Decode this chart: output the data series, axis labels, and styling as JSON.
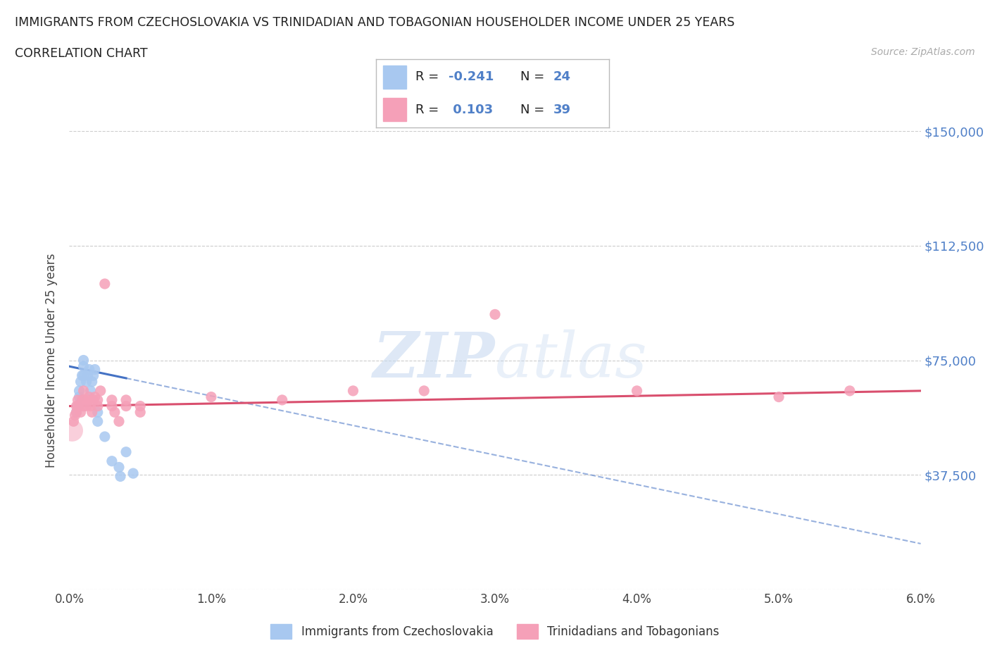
{
  "title_line1": "IMMIGRANTS FROM CZECHOSLOVAKIA VS TRINIDADIAN AND TOBAGONIAN HOUSEHOLDER INCOME UNDER 25 YEARS",
  "title_line2": "CORRELATION CHART",
  "source_text": "Source: ZipAtlas.com",
  "ylabel": "Householder Income Under 25 years",
  "xmin": 0.0,
  "xmax": 0.06,
  "ymin": 0,
  "ymax": 150000,
  "ytick_vals": [
    0,
    37500,
    75000,
    112500,
    150000
  ],
  "ytick_labels": [
    "",
    "$37,500",
    "$75,000",
    "$112,500",
    "$150,000"
  ],
  "xtick_vals": [
    0.0,
    0.01,
    0.02,
    0.03,
    0.04,
    0.05,
    0.06
  ],
  "xtick_labels": [
    "0.0%",
    "1.0%",
    "2.0%",
    "3.0%",
    "4.0%",
    "5.0%",
    "6.0%"
  ],
  "blue_R": -0.241,
  "blue_N": 24,
  "pink_R": 0.103,
  "pink_N": 39,
  "blue_dot_color": "#a8c8f0",
  "pink_dot_color": "#f5a0b8",
  "blue_line_color": "#4472c4",
  "pink_line_color": "#d94f6e",
  "axis_color": "#5080c8",
  "grid_color": "#cccccc",
  "watermark_color": "#c8daf0",
  "blue_x": [
    0.0005,
    0.0006,
    0.0007,
    0.0007,
    0.0008,
    0.0009,
    0.001,
    0.001,
    0.001,
    0.0012,
    0.0013,
    0.0014,
    0.0015,
    0.0016,
    0.0017,
    0.0018,
    0.002,
    0.002,
    0.0025,
    0.003,
    0.0035,
    0.0036,
    0.004,
    0.0045
  ],
  "blue_y": [
    58000,
    60000,
    63000,
    65000,
    68000,
    70000,
    70000,
    73000,
    75000,
    68000,
    70000,
    72000,
    65000,
    68000,
    70000,
    72000,
    55000,
    58000,
    50000,
    42000,
    40000,
    37000,
    45000,
    38000
  ],
  "pink_x": [
    0.0003,
    0.0004,
    0.0005,
    0.0005,
    0.0006,
    0.0006,
    0.0007,
    0.0008,
    0.0009,
    0.001,
    0.001,
    0.001,
    0.0012,
    0.0013,
    0.0014,
    0.0015,
    0.0016,
    0.0017,
    0.0018,
    0.002,
    0.002,
    0.0022,
    0.0025,
    0.003,
    0.003,
    0.0032,
    0.0035,
    0.004,
    0.004,
    0.005,
    0.005,
    0.01,
    0.015,
    0.02,
    0.025,
    0.03,
    0.04,
    0.05,
    0.055
  ],
  "pink_y": [
    55000,
    57000,
    58000,
    60000,
    60000,
    62000,
    60000,
    58000,
    62000,
    60000,
    62000,
    65000,
    60000,
    62000,
    63000,
    60000,
    58000,
    62000,
    63000,
    60000,
    62000,
    65000,
    100000,
    60000,
    62000,
    58000,
    55000,
    60000,
    62000,
    60000,
    58000,
    63000,
    62000,
    65000,
    65000,
    90000,
    65000,
    63000,
    65000
  ],
  "blue_line_x_start": 0.0,
  "blue_line_x_solid_end": 0.004,
  "blue_line_x_dash_end": 0.06,
  "blue_line_y_at_0": 73000,
  "blue_line_y_at_006": 15000,
  "pink_line_y_at_0": 60000,
  "pink_line_y_at_006": 65000,
  "dot_size": 120
}
